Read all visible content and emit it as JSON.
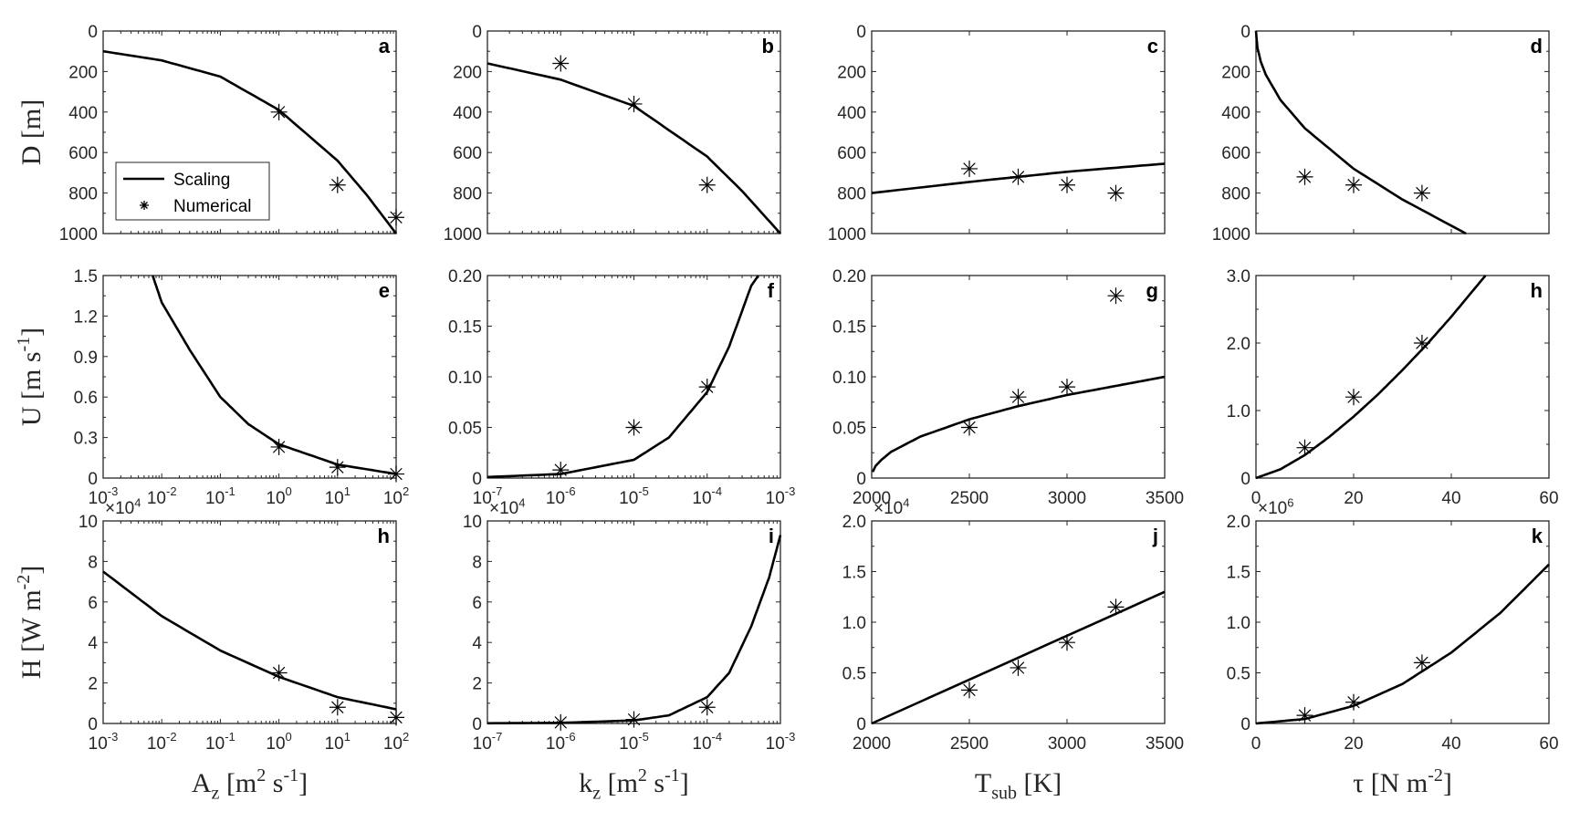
{
  "chart_data": {
    "type": "line",
    "title": "",
    "legend": {
      "placement": "inside panel a, bottom-left",
      "entries": [
        "Scaling",
        "Numerical"
      ]
    },
    "row_labels": [
      "D [m]",
      "U [m s^{-1}]",
      "H [W m^{-2}]"
    ],
    "col_labels": [
      "A_z [m^2 s^{-1}]",
      "k_z [m^2 s^{-1}]",
      "T_{sub} [K]",
      "τ [N m^{-2}]"
    ],
    "colors": {
      "line": "#000000",
      "axes": "#262626"
    },
    "panels": [
      {
        "id": "a",
        "xscale": "log",
        "xlim": [
          -3,
          2
        ],
        "xticks": [
          -3,
          -2,
          -1,
          0,
          1,
          2
        ],
        "show_xticklabels": false,
        "ylim": [
          0,
          1000
        ],
        "yreverse": true,
        "yticks": [
          0,
          200,
          400,
          600,
          800,
          1000
        ],
        "yticklabels": [
          "0",
          "200",
          "400",
          "600",
          "800",
          "1000"
        ],
        "scaling": [
          [
            0.001,
            100
          ],
          [
            0.01,
            145
          ],
          [
            0.1,
            225
          ],
          [
            1,
            390
          ],
          [
            10,
            640
          ],
          [
            31.6,
            810
          ],
          [
            100,
            1000
          ]
        ],
        "numerical": [
          [
            1,
            400
          ],
          [
            10,
            760
          ],
          [
            100,
            920
          ]
        ]
      },
      {
        "id": "b",
        "xscale": "log",
        "xlim": [
          -7,
          -3
        ],
        "xticks": [
          -7,
          -6,
          -5,
          -4,
          -3
        ],
        "show_xticklabels": false,
        "ylim": [
          0,
          1000
        ],
        "yreverse": true,
        "yticks": [
          0,
          200,
          400,
          600,
          800,
          1000
        ],
        "yticklabels": [
          "0",
          "200",
          "400",
          "600",
          "800",
          "1000"
        ],
        "scaling": [
          [
            1e-07,
            160
          ],
          [
            1e-06,
            240
          ],
          [
            1e-05,
            370
          ],
          [
            0.0001,
            620
          ],
          [
            0.0003,
            790
          ],
          [
            0.001,
            1000
          ]
        ],
        "numerical": [
          [
            1e-06,
            160
          ],
          [
            1e-05,
            360
          ],
          [
            0.0001,
            760
          ]
        ]
      },
      {
        "id": "c",
        "xscale": "linear",
        "xlim": [
          2000,
          3500
        ],
        "xticks": [
          2000,
          2500,
          3000,
          3500
        ],
        "show_xticklabels": false,
        "ylim": [
          0,
          1000
        ],
        "yreverse": true,
        "yticks": [
          0,
          200,
          400,
          600,
          800,
          1000
        ],
        "yticklabels": [
          "0",
          "200",
          "400",
          "600",
          "800",
          "1000"
        ],
        "scaling": [
          [
            2000,
            800
          ],
          [
            2500,
            745
          ],
          [
            3000,
            695
          ],
          [
            3500,
            655
          ]
        ],
        "numerical": [
          [
            2500,
            680
          ],
          [
            2750,
            720
          ],
          [
            3000,
            760
          ],
          [
            3250,
            800
          ]
        ]
      },
      {
        "id": "d",
        "xscale": "linear",
        "xlim": [
          0,
          60
        ],
        "xticks": [
          0,
          20,
          40,
          60
        ],
        "show_xticklabels": false,
        "ylim": [
          0,
          1000
        ],
        "yreverse": true,
        "yticks": [
          0,
          200,
          400,
          600,
          800,
          1000
        ],
        "yticklabels": [
          "0",
          "200",
          "400",
          "600",
          "800",
          "1000"
        ],
        "scaling": [
          [
            0,
            0
          ],
          [
            0.3,
            83
          ],
          [
            1,
            152
          ],
          [
            2,
            215
          ],
          [
            5,
            340
          ],
          [
            10,
            480
          ],
          [
            20,
            680
          ],
          [
            30,
            832
          ],
          [
            43,
            1000
          ]
        ],
        "numerical": [
          [
            10,
            720
          ],
          [
            20,
            760
          ],
          [
            34,
            800
          ]
        ]
      },
      {
        "id": "e",
        "xscale": "log",
        "xlim": [
          -3,
          2
        ],
        "xticks": [
          -3,
          -2,
          -1,
          0,
          1,
          2
        ],
        "show_xticklabels": true,
        "ylim": [
          0,
          1.5
        ],
        "yticks": [
          0,
          0.3,
          0.6,
          0.9,
          1.2,
          1.5
        ],
        "yticklabels": [
          "0",
          "0.3",
          "0.6",
          "0.9",
          "1.2",
          "1.5"
        ],
        "scaling": [
          [
            0.007,
            1.5
          ],
          [
            0.01,
            1.3
          ],
          [
            0.03,
            0.95
          ],
          [
            0.1,
            0.6
          ],
          [
            0.3,
            0.4
          ],
          [
            1,
            0.25
          ],
          [
            10,
            0.1
          ],
          [
            100,
            0.03
          ]
        ],
        "numerical": [
          [
            1,
            0.23
          ],
          [
            10,
            0.08
          ],
          [
            100,
            0.03
          ]
        ]
      },
      {
        "id": "f",
        "xscale": "log",
        "xlim": [
          -7,
          -3
        ],
        "xticks": [
          -7,
          -6,
          -5,
          -4,
          -3
        ],
        "show_xticklabels": true,
        "ylim": [
          0,
          0.2
        ],
        "yticks": [
          0,
          0.05,
          0.1,
          0.15,
          0.2
        ],
        "yticklabels": [
          "0",
          "0.05",
          "0.10",
          "0.15",
          "0.20"
        ],
        "scaling": [
          [
            1e-07,
            0.001
          ],
          [
            1e-06,
            0.004
          ],
          [
            1e-05,
            0.018
          ],
          [
            3e-05,
            0.04
          ],
          [
            0.0001,
            0.085
          ],
          [
            0.0002,
            0.13
          ],
          [
            0.0004,
            0.19
          ],
          [
            0.0005,
            0.2
          ]
        ],
        "numerical": [
          [
            1e-06,
            0.008
          ],
          [
            1e-05,
            0.05
          ],
          [
            0.0001,
            0.09
          ]
        ]
      },
      {
        "id": "g",
        "xscale": "linear",
        "xlim": [
          2000,
          3500
        ],
        "xticks": [
          2000,
          2500,
          3000,
          3500
        ],
        "show_xticklabels": true,
        "ylim": [
          0,
          0.2
        ],
        "yticks": [
          0,
          0.05,
          0.1,
          0.15,
          0.2
        ],
        "yticklabels": [
          "0",
          "0.05",
          "0.10",
          "0.15",
          "0.20"
        ],
        "scaling": [
          [
            2005,
            0.006
          ],
          [
            2020,
            0.012
          ],
          [
            2050,
            0.018
          ],
          [
            2100,
            0.026
          ],
          [
            2250,
            0.041
          ],
          [
            2500,
            0.058
          ],
          [
            2750,
            0.071
          ],
          [
            3000,
            0.082
          ],
          [
            3250,
            0.091
          ],
          [
            3500,
            0.1
          ]
        ],
        "numerical": [
          [
            2500,
            0.05
          ],
          [
            2750,
            0.08
          ],
          [
            3000,
            0.09
          ],
          [
            3250,
            0.18
          ]
        ]
      },
      {
        "id": "h",
        "xscale": "linear",
        "xlim": [
          0,
          60
        ],
        "xticks": [
          0,
          20,
          40,
          60
        ],
        "show_xticklabels": true,
        "ylim": [
          0,
          3
        ],
        "yticks": [
          0,
          1,
          2,
          3
        ],
        "yticklabels": [
          "0",
          "1.0",
          "2.0",
          "3.0"
        ],
        "scaling": [
          [
            0,
            0
          ],
          [
            5,
            0.13
          ],
          [
            10,
            0.34
          ],
          [
            15,
            0.61
          ],
          [
            20,
            0.91
          ],
          [
            25,
            1.24
          ],
          [
            30,
            1.6
          ],
          [
            35,
            1.98
          ],
          [
            40,
            2.39
          ],
          [
            47,
            3.0
          ]
        ],
        "numerical": [
          [
            10,
            0.45
          ],
          [
            20,
            1.2
          ],
          [
            34,
            2.0
          ]
        ]
      },
      {
        "id": "h",
        "xscale": "log",
        "xlim": [
          -3,
          2
        ],
        "xticks": [
          -3,
          -2,
          -1,
          0,
          1,
          2
        ],
        "show_xticklabels": true,
        "multiplier": "×10^4",
        "ylim": [
          0,
          10
        ],
        "yticks": [
          0,
          2,
          4,
          6,
          8,
          10
        ],
        "yticklabels": [
          "0",
          "2",
          "4",
          "6",
          "8",
          "10"
        ],
        "scaling": [
          [
            0.001,
            7.5
          ],
          [
            0.01,
            5.3
          ],
          [
            0.1,
            3.6
          ],
          [
            1,
            2.3
          ],
          [
            10,
            1.3
          ],
          [
            100,
            0.7
          ]
        ],
        "numerical": [
          [
            1,
            2.5
          ],
          [
            10,
            0.8
          ],
          [
            100,
            0.3
          ]
        ]
      },
      {
        "id": "i",
        "xscale": "log",
        "xlim": [
          -7,
          -3
        ],
        "xticks": [
          -7,
          -6,
          -5,
          -4,
          -3
        ],
        "show_xticklabels": true,
        "multiplier": "×10^4",
        "ylim": [
          0,
          10
        ],
        "yticks": [
          0,
          2,
          4,
          6,
          8,
          10
        ],
        "yticklabels": [
          "0",
          "2",
          "4",
          "6",
          "8",
          "10"
        ],
        "scaling": [
          [
            1e-07,
            0.01
          ],
          [
            1e-06,
            0.03
          ],
          [
            1e-05,
            0.15
          ],
          [
            3e-05,
            0.4
          ],
          [
            0.0001,
            1.3
          ],
          [
            0.0002,
            2.5
          ],
          [
            0.0004,
            4.8
          ],
          [
            0.0007,
            7.2
          ],
          [
            0.001,
            9.3
          ]
        ],
        "numerical": [
          [
            1e-06,
            0.05
          ],
          [
            1e-05,
            0.2
          ],
          [
            0.0001,
            0.8
          ]
        ]
      },
      {
        "id": "j",
        "xscale": "linear",
        "xlim": [
          2000,
          3500
        ],
        "xticks": [
          2000,
          2500,
          3000,
          3500
        ],
        "show_xticklabels": true,
        "multiplier": "×10^4",
        "ylim": [
          0,
          2
        ],
        "yticks": [
          0,
          0.5,
          1,
          1.5,
          2
        ],
        "yticklabels": [
          "0",
          "0.5",
          "1.0",
          "1.5",
          "2.0"
        ],
        "scaling": [
          [
            2000,
            0
          ],
          [
            3500,
            1.3
          ]
        ],
        "numerical": [
          [
            2500,
            0.33
          ],
          [
            2750,
            0.55
          ],
          [
            3000,
            0.8
          ],
          [
            3250,
            1.15
          ]
        ]
      },
      {
        "id": "k",
        "xscale": "linear",
        "xlim": [
          0,
          60
        ],
        "xticks": [
          0,
          20,
          40,
          60
        ],
        "show_xticklabels": true,
        "multiplier": "×10^6",
        "ylim": [
          0,
          2
        ],
        "yticks": [
          0,
          0.5,
          1,
          1.5,
          2
        ],
        "yticklabels": [
          "0",
          "0.5",
          "1.0",
          "1.5",
          "2.0"
        ],
        "scaling": [
          [
            0,
            0
          ],
          [
            10,
            0.044
          ],
          [
            20,
            0.174
          ],
          [
            30,
            0.39
          ],
          [
            40,
            0.7
          ],
          [
            50,
            1.09
          ],
          [
            60,
            1.57
          ]
        ],
        "numerical": [
          [
            10,
            0.08
          ],
          [
            20,
            0.21
          ],
          [
            34,
            0.6
          ]
        ]
      }
    ]
  }
}
